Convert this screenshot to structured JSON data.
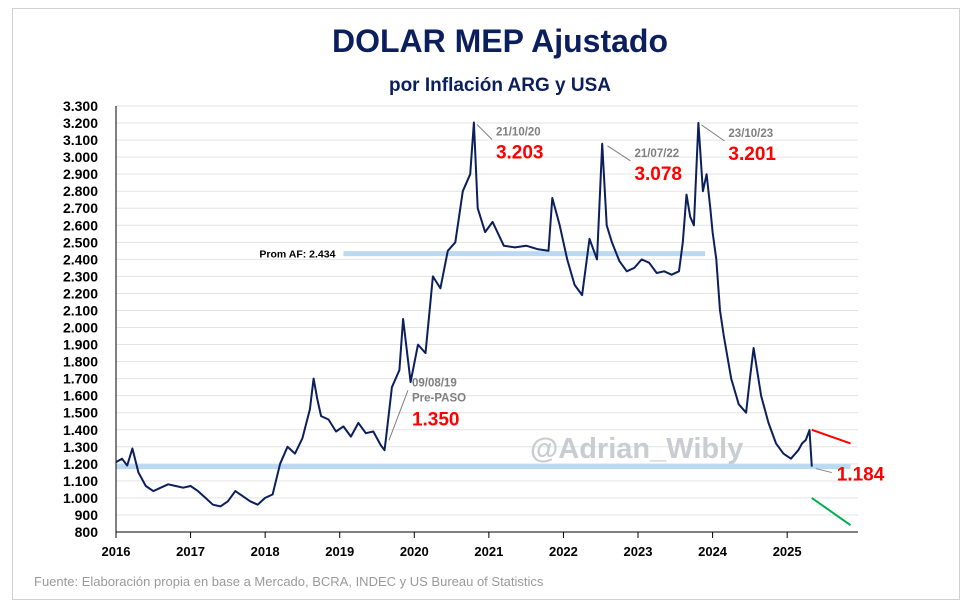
{
  "chart_data": {
    "type": "line",
    "title": "DOLAR MEP Ajustado",
    "subtitle": "por Inflación ARG y USA",
    "ylim": [
      800,
      3300
    ],
    "yticks": [
      "800",
      "900",
      "1.000",
      "1.100",
      "1.200",
      "1.300",
      "1.400",
      "1.500",
      "1.600",
      "1.700",
      "1.800",
      "1.900",
      "2.000",
      "2.100",
      "2.200",
      "2.300",
      "2.400",
      "2.500",
      "2.600",
      "2.700",
      "2.800",
      "2.900",
      "3.000",
      "3.100",
      "3.200",
      "3.300"
    ],
    "xlim": [
      2016,
      2025.95
    ],
    "xticks": [
      "2016",
      "2017",
      "2018",
      "2019",
      "2020",
      "2021",
      "2022",
      "2023",
      "2024",
      "2025"
    ],
    "grid": true,
    "series": [
      {
        "name": "",
        "color": "#0b1f5c",
        "x": [
          2016.0,
          2016.08,
          2016.15,
          2016.22,
          2016.3,
          2016.4,
          2016.5,
          2016.6,
          2016.7,
          2016.8,
          2016.9,
          2017.0,
          2017.1,
          2017.2,
          2017.3,
          2017.4,
          2017.5,
          2017.6,
          2017.7,
          2017.8,
          2017.9,
          2018.0,
          2018.1,
          2018.2,
          2018.3,
          2018.4,
          2018.5,
          2018.6,
          2018.65,
          2018.7,
          2018.75,
          2018.85,
          2018.95,
          2019.05,
          2019.15,
          2019.25,
          2019.35,
          2019.45,
          2019.55,
          2019.6,
          2019.62,
          2019.7,
          2019.8,
          2019.85,
          2019.95,
          2020.05,
          2020.15,
          2020.25,
          2020.35,
          2020.45,
          2020.55,
          2020.65,
          2020.75,
          2020.8,
          2020.85,
          2020.95,
          2021.05,
          2021.2,
          2021.35,
          2021.5,
          2021.65,
          2021.8,
          2021.85,
          2021.95,
          2022.05,
          2022.15,
          2022.25,
          2022.35,
          2022.45,
          2022.52,
          2022.58,
          2022.65,
          2022.75,
          2022.85,
          2022.95,
          2023.05,
          2023.15,
          2023.25,
          2023.35,
          2023.45,
          2023.55,
          2023.6,
          2023.65,
          2023.7,
          2023.75,
          2023.81,
          2023.87,
          2023.92,
          2023.97,
          2024.0,
          2024.05,
          2024.1,
          2024.15,
          2024.25,
          2024.35,
          2024.45,
          2024.5,
          2024.55,
          2024.65,
          2024.75,
          2024.85,
          2024.95,
          2025.05,
          2025.15,
          2025.2,
          2025.25,
          2025.3,
          2025.33
        ],
        "values": [
          1210,
          1230,
          1190,
          1290,
          1150,
          1070,
          1040,
          1060,
          1080,
          1070,
          1060,
          1070,
          1040,
          1000,
          960,
          950,
          980,
          1040,
          1010,
          980,
          960,
          1000,
          1020,
          1200,
          1300,
          1260,
          1350,
          1520,
          1700,
          1580,
          1480,
          1460,
          1390,
          1420,
          1360,
          1440,
          1380,
          1390,
          1310,
          1280,
          1350,
          1650,
          1750,
          2050,
          1680,
          1900,
          1850,
          2300,
          2230,
          2450,
          2500,
          2800,
          2900,
          3203,
          2700,
          2560,
          2620,
          2480,
          2470,
          2480,
          2460,
          2450,
          2760,
          2600,
          2400,
          2250,
          2190,
          2520,
          2400,
          3078,
          2600,
          2500,
          2390,
          2330,
          2350,
          2400,
          2380,
          2320,
          2330,
          2310,
          2330,
          2500,
          2780,
          2650,
          2600,
          3201,
          2800,
          2900,
          2700,
          2560,
          2400,
          2100,
          1950,
          1700,
          1550,
          1500,
          1700,
          1880,
          1600,
          1440,
          1320,
          1260,
          1230,
          1280,
          1320,
          1340,
          1398,
          1184
        ]
      }
    ],
    "reference_lines": [
      {
        "label": "Prom AF: 2.434",
        "value": 2434,
        "x_from": 2019.05,
        "x_to": 2023.9,
        "color": "#bcd9f2"
      },
      {
        "label": "",
        "value": 1184,
        "x_from": 2016.0,
        "x_to": 2025.85,
        "color": "#bcd9f2"
      }
    ],
    "annotations": [
      {
        "date": "21/10/20",
        "value": "3.203",
        "x": 2020.8,
        "y": 3203
      },
      {
        "date": "21/07/22",
        "value": "3.078",
        "x": 2022.55,
        "y": 3078
      },
      {
        "date": "23/10/23",
        "value": "3.201",
        "x": 2023.81,
        "y": 3201
      },
      {
        "date": "09/08/19",
        "note": "Pre-PASO",
        "value": "1.350",
        "x": 2019.62,
        "y": 1350
      },
      {
        "date": "",
        "value": "1.184",
        "x": 2025.33,
        "y": 1184
      }
    ],
    "trend_lines": [
      {
        "color": "#ff0000",
        "from": [
          2025.33,
          1400
        ],
        "to": [
          2025.85,
          1320
        ]
      },
      {
        "color": "#00b050",
        "from": [
          2025.33,
          1000
        ],
        "to": [
          2025.85,
          840
        ]
      }
    ]
  },
  "watermark": "@Adrian_Wibly",
  "source": "Fuente: Elaboración propia en base a Mercado, BCRA, INDEC y US Bureau of Statistics"
}
